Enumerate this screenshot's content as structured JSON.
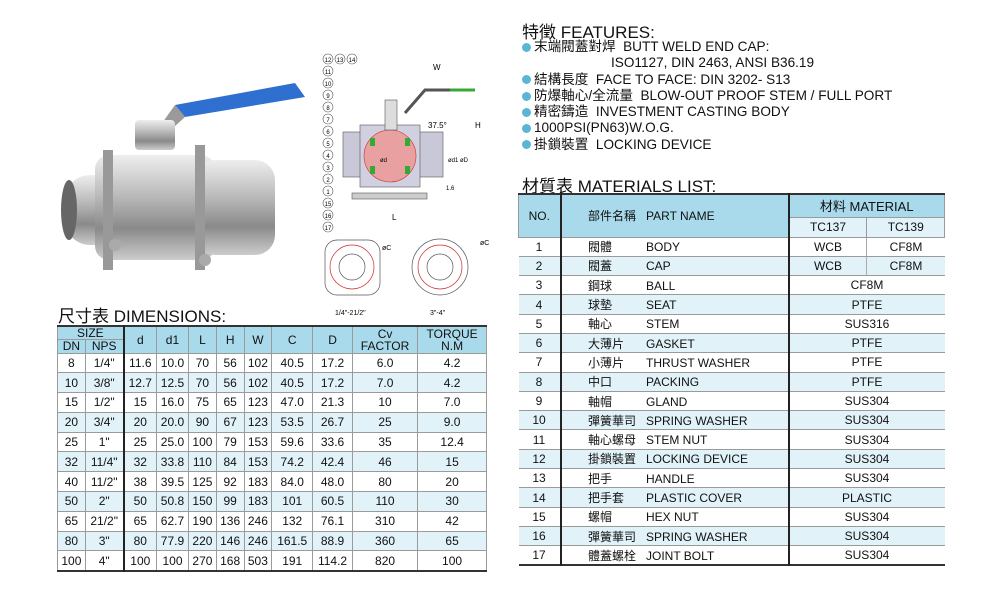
{
  "features": {
    "title": "特徵  FEATURES:",
    "items": [
      {
        "text": "末端閥蓋對焊  BUTT WELD END CAP:"
      },
      {
        "text": "ISO1127, DIN 2463, ANSI B36.19",
        "continuation": true
      },
      {
        "text": "結構長度  FACE TO FACE: DIN 3202- S13"
      },
      {
        "text": "防爆軸心/全流量  BLOW-OUT PROOF STEM / FULL PORT"
      },
      {
        "text": "精密鑄造  INVESTMENT CASTING BODY"
      },
      {
        "text": "1000PSI(PN63)W.O.G."
      },
      {
        "text": "掛鎖裝置  LOCKING DEVICE"
      }
    ],
    "bullet_color": "#5bb6d6"
  },
  "drawing": {
    "labels": [
      "W",
      "H",
      "37.5°",
      "ød",
      "ød1",
      "øD",
      "1.6",
      "L",
      "øC",
      "øC"
    ],
    "part_numbers": [
      "12",
      "13",
      "14",
      "11",
      "10",
      "9",
      "8",
      "7",
      "6",
      "5",
      "4",
      "3",
      "2",
      "1",
      "15",
      "16",
      "17"
    ],
    "flange_captions": [
      "1/4\"-21/2\"",
      "3\"-4\""
    ]
  },
  "dimensions": {
    "title": "尺寸表  DIMENSIONS:",
    "header": {
      "size": "SIZE",
      "dn": "DN",
      "nps": "NPS",
      "cols": [
        "d",
        "d1",
        "L",
        "H",
        "W",
        "C",
        "D"
      ],
      "cv": "Cv",
      "cv2": "FACTOR",
      "torque": "TORQUE",
      "torque2": "N.M"
    },
    "rows": [
      [
        "8",
        "1/4\"",
        "11.6",
        "10.0",
        "70",
        "56",
        "102",
        "40.5",
        "17.2",
        "6.0",
        "4.2"
      ],
      [
        "10",
        "3/8\"",
        "12.7",
        "12.5",
        "70",
        "56",
        "102",
        "40.5",
        "17.2",
        "7.0",
        "4.2"
      ],
      [
        "15",
        "1/2\"",
        "15",
        "16.0",
        "75",
        "65",
        "123",
        "47.0",
        "21.3",
        "10",
        "7.0"
      ],
      [
        "20",
        "3/4\"",
        "20",
        "20.0",
        "90",
        "67",
        "123",
        "53.5",
        "26.7",
        "25",
        "9.0"
      ],
      [
        "25",
        "1\"",
        "25",
        "25.0",
        "100",
        "79",
        "153",
        "59.6",
        "33.6",
        "35",
        "12.4"
      ],
      [
        "32",
        "11/4\"",
        "32",
        "33.8",
        "110",
        "84",
        "153",
        "74.2",
        "42.4",
        "46",
        "15"
      ],
      [
        "40",
        "11/2\"",
        "38",
        "39.5",
        "125",
        "92",
        "183",
        "84.0",
        "48.0",
        "80",
        "20"
      ],
      [
        "50",
        "2\"",
        "50",
        "50.8",
        "150",
        "99",
        "183",
        "101",
        "60.5",
        "110",
        "30"
      ],
      [
        "65",
        "21/2\"",
        "65",
        "62.7",
        "190",
        "136",
        "246",
        "132",
        "76.1",
        "310",
        "42"
      ],
      [
        "80",
        "3\"",
        "80",
        "77.9",
        "220",
        "146",
        "246",
        "161.5",
        "88.9",
        "360",
        "65"
      ],
      [
        "100",
        "4\"",
        "100",
        "100",
        "270",
        "168",
        "503",
        "191",
        "114.2",
        "820",
        "100"
      ]
    ]
  },
  "materials": {
    "title": "材質表  MATERIALS LIST:",
    "header": {
      "no": "NO.",
      "part_cn": "部件名稱",
      "part_en": "PART NAME",
      "material": "材料  MATERIAL",
      "tc137": "TC137",
      "tc139": "TC139"
    },
    "rows": [
      {
        "no": "1",
        "cn": "閥體",
        "en": "BODY",
        "m1": "WCB",
        "m2": "CF8M"
      },
      {
        "no": "2",
        "cn": "閥蓋",
        "en": "CAP",
        "m1": "WCB",
        "m2": "CF8M"
      },
      {
        "no": "3",
        "cn": "鋼球",
        "en": "BALL",
        "m": "CF8M"
      },
      {
        "no": "4",
        "cn": "球墊",
        "en": "SEAT",
        "m": "PTFE"
      },
      {
        "no": "5",
        "cn": "軸心",
        "en": "STEM",
        "m": "SUS316"
      },
      {
        "no": "6",
        "cn": "大薄片",
        "en": "GASKET",
        "m": "PTFE"
      },
      {
        "no": "7",
        "cn": "小薄片",
        "en": "THRUST WASHER",
        "m": "PTFE"
      },
      {
        "no": "8",
        "cn": "中口",
        "en": "PACKING",
        "m": "PTFE"
      },
      {
        "no": "9",
        "cn": "軸帽",
        "en": "GLAND",
        "m": "SUS304"
      },
      {
        "no": "10",
        "cn": "彈簧華司",
        "en": "SPRING WASHER",
        "m": "SUS304"
      },
      {
        "no": "11",
        "cn": "軸心螺母",
        "en": "STEM NUT",
        "m": "SUS304"
      },
      {
        "no": "12",
        "cn": "掛鎖裝置",
        "en": "LOCKING DEVICE",
        "m": "SUS304"
      },
      {
        "no": "13",
        "cn": "把手",
        "en": "HANDLE",
        "m": "SUS304"
      },
      {
        "no": "14",
        "cn": "把手套",
        "en": "PLASTIC COVER",
        "m": "PLASTIC"
      },
      {
        "no": "15",
        "cn": "螺帽",
        "en": "HEX NUT",
        "m": "SUS304"
      },
      {
        "no": "16",
        "cn": "彈簧華司",
        "en": "SPRING WASHER",
        "m": "SUS304"
      },
      {
        "no": "17",
        "cn": "體蓋螺栓",
        "en": "JOINT BOLT",
        "m": "SUS304"
      }
    ]
  },
  "colors": {
    "header_bg": "#a9daec",
    "alt_row": "#e1f2f9",
    "handle_blue": "#2f6fd0"
  }
}
